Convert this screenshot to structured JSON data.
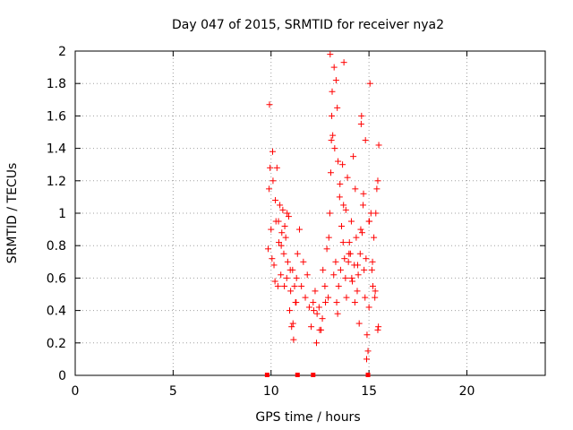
{
  "chart_data": {
    "type": "scatter",
    "title": "Day 047 of 2015, SRMTID for receiver nya2",
    "xlabel": "GPS time / hours",
    "ylabel": "SRMTID / TECUs",
    "xlim": [
      0,
      24
    ],
    "ylim": [
      0,
      2
    ],
    "grid": true,
    "marker": "+",
    "color": "#ff0000",
    "x_ticks": [
      0,
      5,
      10,
      15,
      20
    ],
    "x_tick_labels": [
      "0",
      "5",
      "10",
      "15",
      "20"
    ],
    "y_ticks": [
      0,
      0.2,
      0.4,
      0.6,
      0.8,
      1.0,
      1.2,
      1.4,
      1.6,
      1.8,
      2.0
    ],
    "y_tick_labels": [
      "0",
      "0.2",
      "0.4",
      "0.6",
      "0.8",
      "1",
      "1.2",
      "1.4",
      "1.6",
      "1.8",
      "2"
    ],
    "series": [
      {
        "name": "SRMTID",
        "x": [
          9.85,
          9.9,
          9.95,
          10.0,
          10.05,
          10.1,
          10.15,
          10.2,
          10.25,
          10.3,
          10.35,
          10.4,
          10.45,
          10.5,
          10.55,
          10.6,
          10.65,
          10.7,
          10.75,
          10.8,
          10.85,
          10.9,
          10.95,
          11.0,
          11.05,
          11.1,
          11.15,
          11.2,
          11.25,
          11.3,
          11.35,
          11.45,
          11.55,
          11.65,
          11.75,
          11.85,
          11.95,
          12.05,
          12.15,
          12.25,
          12.35,
          12.45,
          12.55,
          12.65,
          12.75,
          12.85,
          12.95,
          13.0,
          13.05,
          13.1,
          13.15,
          13.2,
          13.25,
          13.3,
          13.35,
          13.4,
          13.45,
          13.5,
          13.55,
          13.6,
          13.65,
          13.7,
          13.75,
          13.8,
          13.85,
          13.9,
          13.95,
          14.0,
          14.05,
          14.1,
          14.15,
          14.2,
          14.25,
          14.3,
          14.35,
          14.4,
          14.45,
          14.5,
          14.55,
          14.6,
          14.65,
          14.7,
          14.75,
          14.8,
          14.85,
          14.9,
          14.95,
          15.0,
          15.05,
          15.1,
          15.15,
          15.2,
          15.25,
          15.3,
          15.35,
          15.4,
          15.45,
          15.5,
          9.92,
          10.08,
          10.22,
          10.38,
          10.52,
          10.68,
          10.82,
          10.98,
          11.12,
          11.28,
          12.18,
          12.32,
          12.48,
          12.62,
          12.78,
          12.92,
          13.08,
          13.22,
          13.38,
          13.52,
          13.68,
          13.82,
          13.98,
          14.12,
          14.28,
          14.42,
          14.58,
          14.72,
          14.88,
          15.02,
          15.18,
          15.32,
          15.48,
          13.02,
          13.12,
          13.32,
          13.42,
          13.72,
          14.62,
          14.82,
          15.0,
          15.45
        ],
        "y": [
          0.78,
          1.15,
          1.28,
          0.9,
          0.72,
          1.2,
          0.68,
          0.58,
          0.95,
          1.28,
          0.55,
          0.82,
          1.05,
          0.62,
          0.88,
          1.02,
          0.75,
          0.92,
          0.85,
          0.6,
          0.7,
          0.98,
          0.4,
          0.52,
          0.3,
          0.65,
          0.22,
          0.55,
          0.45,
          0.6,
          0.75,
          0.9,
          0.55,
          0.7,
          0.48,
          0.62,
          0.42,
          0.3,
          0.45,
          0.52,
          0.38,
          0.42,
          0.28,
          0.65,
          0.55,
          0.78,
          0.85,
          1.0,
          1.25,
          1.6,
          1.48,
          0.62,
          1.4,
          0.7,
          0.45,
          0.38,
          0.55,
          1.1,
          0.65,
          0.92,
          1.3,
          1.05,
          0.72,
          0.6,
          0.48,
          1.22,
          0.7,
          0.82,
          0.75,
          0.95,
          0.58,
          1.35,
          0.68,
          1.15,
          0.85,
          0.52,
          0.62,
          0.32,
          0.75,
          1.55,
          0.88,
          1.05,
          0.65,
          0.48,
          0.72,
          0.25,
          0.15,
          0.42,
          1.8,
          1.0,
          0.65,
          0.55,
          0.85,
          0.48,
          1.0,
          1.15,
          0.28,
          1.42,
          1.67,
          1.38,
          1.08,
          0.95,
          0.8,
          0.55,
          1.0,
          0.65,
          0.32,
          0.45,
          0.4,
          0.2,
          0.28,
          0.35,
          0.45,
          0.48,
          1.45,
          1.9,
          1.65,
          1.18,
          0.82,
          1.02,
          0.75,
          0.6,
          0.45,
          0.68,
          0.9,
          1.12,
          0.1,
          0.95,
          0.7,
          0.52,
          0.3,
          1.98,
          1.75,
          1.82,
          1.32,
          1.93,
          1.6,
          1.45,
          0.95,
          1.2
        ],
        "extra_markers_at_zero": [
          9.8,
          11.35,
          12.15,
          14.95
        ]
      }
    ]
  }
}
